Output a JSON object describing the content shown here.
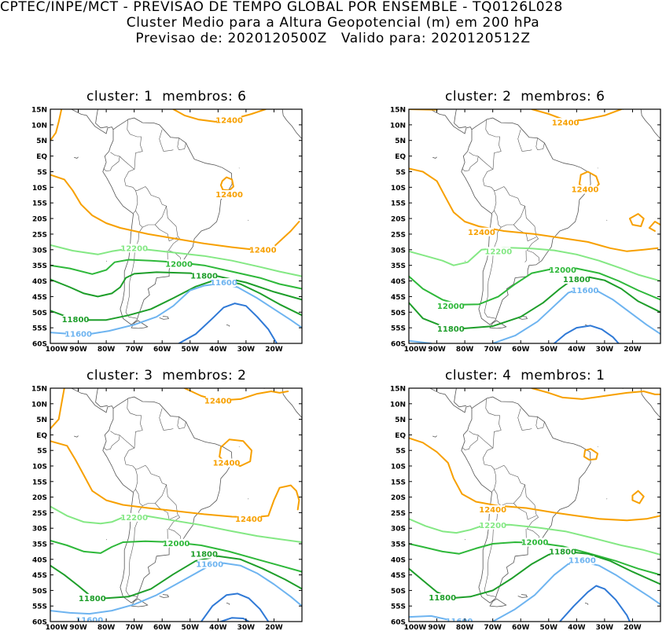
{
  "header": {
    "line1": "CPTEC/INPE/MCT - PREVISAO DE TEMPO GLOBAL POR ENSEMBLE - TQ0126L028",
    "line2": "Cluster Medio para a Altura Geopotencial (m) em 200 hPa",
    "line3": "Previsao de: 2020120500Z   Valido para: 2020120512Z"
  },
  "lat_labels": [
    "15N",
    "10N",
    "5N",
    "EQ",
    "5S",
    "10S",
    "15S",
    "20S",
    "25S",
    "30S",
    "35S",
    "40S",
    "45S",
    "50S",
    "55S",
    "60S"
  ],
  "lon_labels": [
    "100W",
    "90W",
    "80W",
    "70W",
    "60W",
    "50W",
    "40W",
    "30W",
    "20W"
  ],
  "colors": {
    "c12400": "#f7a000",
    "c12200": "#84e884",
    "c12000": "#2eb83a",
    "c11800": "#1e9e2a",
    "c11600": "#6eb4f0",
    "c11400": "#2f79d6",
    "map": "#555555"
  },
  "panels": [
    {
      "title": "cluster: 1  membros: 6",
      "labels": [
        {
          "text": "12400",
          "lon": -36,
          "lat": 11.5,
          "level": "c12400"
        },
        {
          "text": "12400",
          "lon": -36,
          "lat": -12.3,
          "level": "c12400"
        },
        {
          "text": "12400",
          "lon": -24,
          "lat": -30,
          "level": "c12400"
        },
        {
          "text": "12200",
          "lon": -70,
          "lat": -29.5,
          "level": "c12200"
        },
        {
          "text": "12000",
          "lon": -54,
          "lat": -34.5,
          "level": "c12000"
        },
        {
          "text": "11800",
          "lon": -45,
          "lat": -38.3,
          "level": "c11800"
        },
        {
          "text": "11800",
          "lon": -91,
          "lat": -52.3,
          "level": "c11800"
        },
        {
          "text": "11600",
          "lon": -38,
          "lat": -40.5,
          "level": "c11600"
        },
        {
          "text": "11600",
          "lon": -90,
          "lat": -57,
          "level": "c11600"
        }
      ]
    },
    {
      "title": "cluster: 2  membros: 6",
      "labels": [
        {
          "text": "12400",
          "lon": -44,
          "lat": 10.8,
          "level": "c12400"
        },
        {
          "text": "12400",
          "lon": -37,
          "lat": -10.7,
          "level": "c12400"
        },
        {
          "text": "12400",
          "lon": -74,
          "lat": -24.3,
          "level": "c12400"
        },
        {
          "text": "12200",
          "lon": -68,
          "lat": -30.5,
          "level": "c12200"
        },
        {
          "text": "12000",
          "lon": -45,
          "lat": -36.5,
          "level": "c12000"
        },
        {
          "text": "11800",
          "lon": -40,
          "lat": -39.5,
          "level": "c11800"
        },
        {
          "text": "12000",
          "lon": -85,
          "lat": -48,
          "level": "c12000"
        },
        {
          "text": "11800",
          "lon": -85,
          "lat": -55.3,
          "level": "c11800"
        },
        {
          "text": "11600",
          "lon": -37,
          "lat": -43,
          "level": "c11600"
        }
      ]
    },
    {
      "title": "cluster: 3  membros: 2",
      "labels": [
        {
          "text": "12400",
          "lon": -40,
          "lat": 11,
          "level": "c12400"
        },
        {
          "text": "12400",
          "lon": -37,
          "lat": -9,
          "level": "c12400"
        },
        {
          "text": "12400",
          "lon": -29,
          "lat": -27,
          "level": "c12400"
        },
        {
          "text": "12200",
          "lon": -70,
          "lat": -26.5,
          "level": "c12200"
        },
        {
          "text": "12000",
          "lon": -55,
          "lat": -34.8,
          "level": "c12000"
        },
        {
          "text": "11800",
          "lon": -45,
          "lat": -38.3,
          "level": "c11800"
        },
        {
          "text": "11800",
          "lon": -85,
          "lat": -52.5,
          "level": "c11800"
        },
        {
          "text": "11600",
          "lon": -43,
          "lat": -41.5,
          "level": "c11600"
        },
        {
          "text": "11600",
          "lon": -86,
          "lat": -59.5,
          "level": "c11600"
        }
      ]
    },
    {
      "title": "cluster: 4  membros: 1",
      "labels": [
        {
          "text": "12400",
          "lon": -70,
          "lat": -24,
          "level": "c12400"
        },
        {
          "text": "12200",
          "lon": -70,
          "lat": -29,
          "level": "c12200"
        },
        {
          "text": "12000",
          "lon": -55,
          "lat": -34.5,
          "level": "c12000"
        },
        {
          "text": "11800",
          "lon": -45,
          "lat": -37.5,
          "level": "c11800"
        },
        {
          "text": "11600",
          "lon": -38,
          "lat": -40.3,
          "level": "c11600"
        },
        {
          "text": "11800",
          "lon": -88,
          "lat": -52.3,
          "level": "c11800"
        },
        {
          "text": "11600",
          "lon": -82,
          "lat": -59.8,
          "level": "c11600"
        }
      ]
    }
  ]
}
